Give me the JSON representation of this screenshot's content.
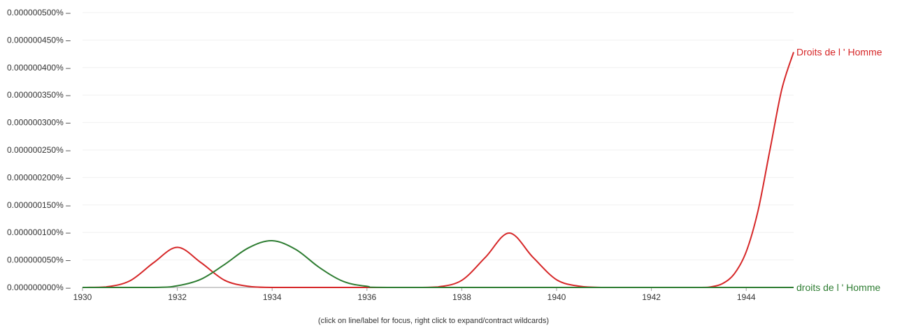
{
  "chart_data": {
    "type": "line",
    "x_ticks": [
      1930,
      1932,
      1934,
      1936,
      1938,
      1940,
      1942,
      1944
    ],
    "y_ticks": [
      "0.000000000%",
      "0.000000050%",
      "0.000000100%",
      "0.000000150%",
      "0.000000200%",
      "0.000000250%",
      "0.000000300%",
      "0.000000350%",
      "0.000000400%",
      "0.000000450%",
      "0.000000500%"
    ],
    "xlim": [
      1930,
      1945
    ],
    "ylim": [
      0,
      5e-07
    ],
    "grid": true,
    "series": [
      {
        "name": "Droits de l ' Homme",
        "color": "#d62728",
        "points": [
          [
            1930.0,
            0.0
          ],
          [
            1930.5,
            1e-09
          ],
          [
            1931.0,
            1.2e-08
          ],
          [
            1931.5,
            4.5e-08
          ],
          [
            1932.0,
            7.3e-08
          ],
          [
            1932.5,
            4.5e-08
          ],
          [
            1933.0,
            1.3e-08
          ],
          [
            1933.5,
            2e-09
          ],
          [
            1934.0,
            0.0
          ],
          [
            1935.0,
            0.0
          ],
          [
            1936.0,
            0.0
          ],
          [
            1937.0,
            0.0
          ],
          [
            1937.5,
            1e-09
          ],
          [
            1938.0,
            1.3e-08
          ],
          [
            1938.5,
            5.5e-08
          ],
          [
            1939.0,
            9.9e-08
          ],
          [
            1939.5,
            5.5e-08
          ],
          [
            1940.0,
            1.4e-08
          ],
          [
            1940.5,
            2e-09
          ],
          [
            1941.0,
            0.0
          ],
          [
            1942.0,
            0.0
          ],
          [
            1943.0,
            0.0
          ],
          [
            1943.25,
            1e-09
          ],
          [
            1943.5,
            7e-09
          ],
          [
            1943.75,
            2.5e-08
          ],
          [
            1944.0,
            6.5e-08
          ],
          [
            1944.25,
            1.4e-07
          ],
          [
            1944.5,
            2.5e-07
          ],
          [
            1944.75,
            3.6e-07
          ],
          [
            1945.0,
            4.28e-07
          ]
        ]
      },
      {
        "name": "droits de l ' Homme",
        "color": "#2e7d32",
        "points": [
          [
            1930.0,
            0.0
          ],
          [
            1931.5,
            0.0
          ],
          [
            1932.0,
            3e-09
          ],
          [
            1932.5,
            1.5e-08
          ],
          [
            1933.0,
            4.2e-08
          ],
          [
            1933.5,
            7.2e-08
          ],
          [
            1934.0,
            8.5e-08
          ],
          [
            1934.5,
            6.9e-08
          ],
          [
            1935.0,
            3.6e-08
          ],
          [
            1935.5,
            1.1e-08
          ],
          [
            1936.0,
            2e-09
          ],
          [
            1936.5,
            0.0
          ],
          [
            1940.0,
            0.0
          ],
          [
            1945.0,
            0.0
          ]
        ]
      }
    ]
  },
  "footnote": "(click on line/label for focus, right click to expand/contract wildcards)"
}
